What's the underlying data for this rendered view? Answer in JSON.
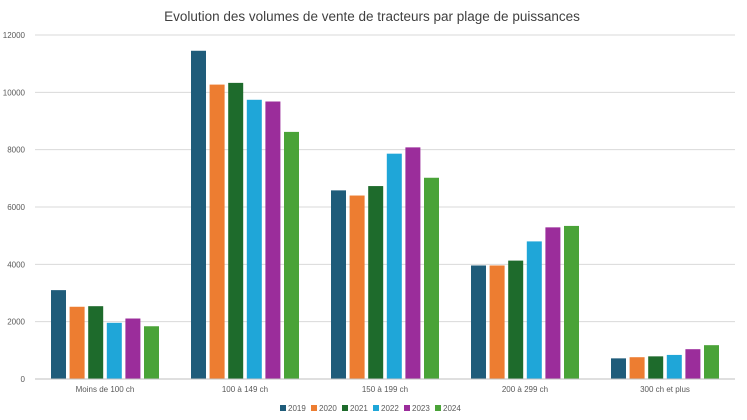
{
  "chart_data": {
    "type": "bar",
    "title": "Evolution des volumes de vente de tracteurs par plage de puissances",
    "xlabel": "",
    "ylabel": "",
    "ylim": [
      0,
      12000
    ],
    "yticks": [
      0,
      2000,
      4000,
      6000,
      8000,
      10000,
      12000
    ],
    "grid": true,
    "legend_position": "bottom",
    "categories": [
      "Moins de 100 ch",
      "100 à 149 ch",
      "150 à 199 ch",
      "200 à 299 ch",
      "300 ch et plus"
    ],
    "series": [
      {
        "name": "2019",
        "color": "#1f5c7a",
        "values": [
          3100,
          11450,
          6580,
          3960,
          720
        ]
      },
      {
        "name": "2020",
        "color": "#ed7d31",
        "values": [
          2520,
          10270,
          6400,
          3960,
          760
        ]
      },
      {
        "name": "2021",
        "color": "#1e6b2c",
        "values": [
          2540,
          10330,
          6730,
          4130,
          790
        ]
      },
      {
        "name": "2022",
        "color": "#1fa6d8",
        "values": [
          1960,
          9740,
          7860,
          4800,
          840
        ]
      },
      {
        "name": "2023",
        "color": "#9b2d9b",
        "values": [
          2110,
          9680,
          8080,
          5290,
          1040
        ]
      },
      {
        "name": "2024",
        "color": "#4aa338",
        "values": [
          1840,
          8620,
          7020,
          5340,
          1180
        ]
      }
    ]
  }
}
